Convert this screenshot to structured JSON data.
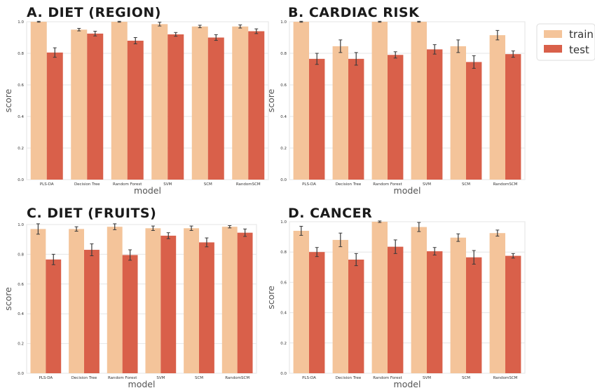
{
  "legend": {
    "entries": [
      {
        "label": "train",
        "color": "#f4c49a"
      },
      {
        "label": "test",
        "color": "#d9604a"
      }
    ],
    "placement": "right"
  },
  "chart_data": [
    {
      "type": "bar",
      "title": "A.  DIET (REGION)",
      "xlabel": "model",
      "ylabel": "score",
      "ylim": [
        0,
        1.0
      ],
      "yticks": [
        "0.0",
        "0.2",
        "0.4",
        "0.6",
        "0.8",
        "1.0"
      ],
      "categories": [
        "PLS-DA",
        "Decision Tree",
        "Random Forest",
        "SVM",
        "SCM",
        "RandomSCM"
      ],
      "series": [
        {
          "name": "train",
          "values": [
            1.0,
            0.95,
            1.0,
            0.985,
            0.97,
            0.97
          ],
          "errors": [
            0.003,
            0.008,
            0.003,
            0.012,
            0.008,
            0.01
          ]
        },
        {
          "name": "test",
          "values": [
            0.805,
            0.925,
            0.88,
            0.92,
            0.9,
            0.94
          ],
          "errors": [
            0.03,
            0.015,
            0.02,
            0.012,
            0.018,
            0.015
          ]
        }
      ],
      "grid": true
    },
    {
      "type": "bar",
      "title": "B.  CARDIAC RISK",
      "xlabel": "model",
      "ylabel": "score",
      "ylim": [
        0,
        1.0
      ],
      "yticks": [
        "0.0",
        "0.2",
        "0.4",
        "0.6",
        "0.8",
        "1.0"
      ],
      "categories": [
        "PLS-DA",
        "Decision Tree",
        "Random Forest",
        "SVM",
        "SCM",
        "RandomSCM"
      ],
      "series": [
        {
          "name": "train",
          "values": [
            1.0,
            0.845,
            1.0,
            1.0,
            0.845,
            0.915
          ],
          "errors": [
            0.003,
            0.04,
            0.003,
            0.003,
            0.04,
            0.03
          ]
        },
        {
          "name": "test",
          "values": [
            0.765,
            0.765,
            0.79,
            0.825,
            0.745,
            0.795
          ],
          "errors": [
            0.035,
            0.04,
            0.02,
            0.03,
            0.04,
            0.02
          ]
        }
      ],
      "grid": true
    },
    {
      "type": "bar",
      "title": "C.  DIET (FRUITS)",
      "xlabel": "model",
      "ylabel": "score",
      "ylim": [
        0,
        1.0
      ],
      "yticks": [
        "0.0",
        "0.2",
        "0.4",
        "0.6",
        "0.8",
        "1.0"
      ],
      "categories": [
        "PLS-DA",
        "Decision Tree",
        "Random Forest",
        "SVM",
        "SCM",
        "RandomSCM"
      ],
      "series": [
        {
          "name": "train",
          "values": [
            0.97,
            0.97,
            0.985,
            0.975,
            0.975,
            0.985
          ],
          "errors": [
            0.035,
            0.015,
            0.02,
            0.015,
            0.015,
            0.008
          ]
        },
        {
          "name": "test",
          "values": [
            0.765,
            0.83,
            0.795,
            0.925,
            0.88,
            0.945
          ],
          "errors": [
            0.035,
            0.04,
            0.035,
            0.02,
            0.03,
            0.025
          ]
        }
      ],
      "grid": true
    },
    {
      "type": "bar",
      "title": "D.  CANCER",
      "xlabel": "model",
      "ylabel": "score",
      "ylim": [
        0,
        1.0
      ],
      "yticks": [
        "0.0",
        "0.2",
        "0.4",
        "0.6",
        "0.8",
        "1.0"
      ],
      "categories": [
        "PLS-DA",
        "Decision Tree",
        "Random Forest",
        "SVM",
        "SCM",
        "RandomSCM"
      ],
      "series": [
        {
          "name": "train",
          "values": [
            0.94,
            0.88,
            1.0,
            0.965,
            0.895,
            0.925
          ],
          "errors": [
            0.03,
            0.045,
            0.005,
            0.03,
            0.025,
            0.02
          ]
        },
        {
          "name": "test",
          "values": [
            0.8,
            0.75,
            0.835,
            0.805,
            0.765,
            0.775
          ],
          "errors": [
            0.03,
            0.04,
            0.045,
            0.025,
            0.045,
            0.015
          ]
        }
      ],
      "grid": true
    }
  ]
}
